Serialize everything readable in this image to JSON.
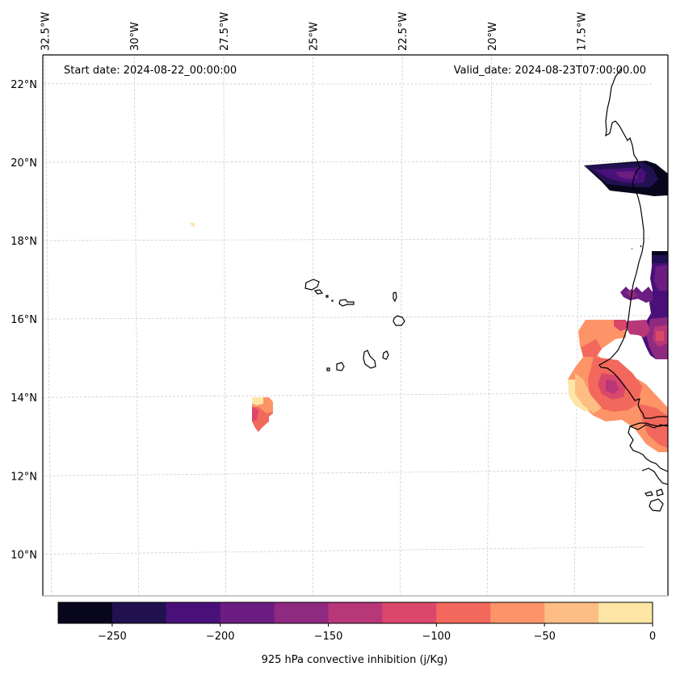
{
  "chart_data": {
    "type": "heatmap",
    "title": "",
    "variable_label": "925 hPa convective inhibition (j/Kg)",
    "start_date_label": "Start date: 2024-08-22_00:00:00",
    "valid_date_label": "Valid_date: 2024-08-23T07:00:00.00",
    "projection": "Lambert conformal (slightly curved graticule)",
    "lon_ticks": [
      {
        "value": -32.5,
        "label": "32.5°W"
      },
      {
        "value": -30.0,
        "label": "30°W"
      },
      {
        "value": -27.5,
        "label": "27.5°W"
      },
      {
        "value": -25.0,
        "label": "25°W"
      },
      {
        "value": -22.5,
        "label": "22.5°W"
      },
      {
        "value": -20.0,
        "label": "20°W"
      },
      {
        "value": -17.5,
        "label": "17.5°W"
      }
    ],
    "lat_ticks": [
      {
        "value": 22,
        "label": "22°N"
      },
      {
        "value": 20,
        "label": "20°N"
      },
      {
        "value": 18,
        "label": "18°N"
      },
      {
        "value": 16,
        "label": "16°N"
      },
      {
        "value": 14,
        "label": "14°N"
      },
      {
        "value": 12,
        "label": "12°N"
      },
      {
        "value": 10,
        "label": "10°N"
      }
    ],
    "extent": {
      "lon_min": -32.6,
      "lon_max": -16.0,
      "lat_min": 8.9,
      "lat_max": 22.8
    },
    "grid": true,
    "colorbar": {
      "orientation": "horizontal",
      "placement": "bottom",
      "levels": [
        -275,
        -250,
        -225,
        -200,
        -175,
        -150,
        -125,
        -100,
        -75,
        -50,
        -25,
        0
      ],
      "colors": [
        "#07061c",
        "#221150",
        "#4a1079",
        "#6b1d81",
        "#8f2a80",
        "#b73779",
        "#db476a",
        "#f3685c",
        "#fd9468",
        "#fdbe84",
        "#fde6a5"
      ],
      "tick_values": [
        -250,
        -200,
        -150,
        -100,
        -50,
        0
      ],
      "tick_labels": [
        "−250",
        "−200",
        "−150",
        "−100",
        "−50",
        "0"
      ]
    },
    "features": [
      {
        "name": "north-mauritania-band",
        "description": "Strong inhibition band near 19.5–20°N along the coast",
        "range": [
          -275,
          -200
        ]
      },
      {
        "name": "mauritania-interior-patch",
        "description": "Purple patch around 15.5–17°N at east edge",
        "range": [
          -225,
          -125
        ]
      },
      {
        "name": "senegal-coast-patch",
        "description": "Orange-salmon patch near 13–16°N with a -125 core",
        "range": [
          -125,
          0
        ]
      },
      {
        "name": "offshore-small-patch",
        "description": "Small patch near 13.5°N, 27°W",
        "range": [
          -125,
          0
        ]
      },
      {
        "name": "tiny-speck",
        "description": "Tiny speck near 18.4°N, 28.8°W",
        "range": [
          -25,
          0
        ]
      }
    ]
  }
}
